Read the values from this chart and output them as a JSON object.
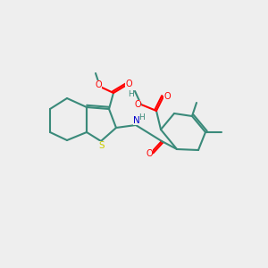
{
  "bg_color": "#eeeeee",
  "bond_color": "#3a8a7a",
  "s_color": "#cccc00",
  "n_color": "#0000cc",
  "o_color": "#ff0000",
  "c_color": "#3a8a7a",
  "label_color": "#3a8a7a",
  "lw": 1.5,
  "atoms": {
    "S": {
      "color": "#cccc00"
    },
    "N": {
      "color": "#0000cc"
    },
    "O": {
      "color": "#ff0000"
    },
    "C": {
      "color": "#3a8a7a"
    }
  }
}
